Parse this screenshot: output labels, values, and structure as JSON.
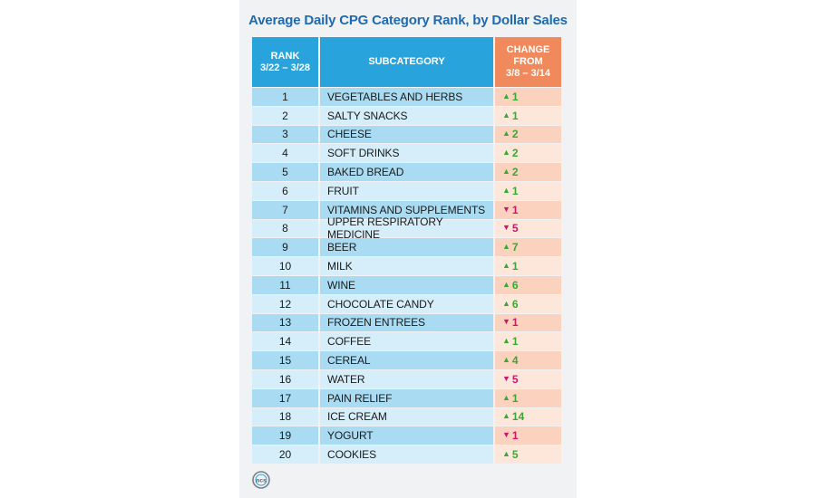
{
  "chart_data": {
    "type": "table",
    "title": "Average Daily CPG Category Rank, by Dollar Sales",
    "columns": [
      "RANK\n3/22 – 3/28",
      "SUBCATEGORY",
      "CHANGE\nFROM\n3/8 – 3/14"
    ],
    "rows": [
      {
        "rank": "1",
        "subcategory": "VEGETABLES AND HERBS",
        "direction": "up",
        "change": "1"
      },
      {
        "rank": "2",
        "subcategory": "SALTY SNACKS",
        "direction": "up",
        "change": "1"
      },
      {
        "rank": "3",
        "subcategory": "CHEESE",
        "direction": "up",
        "change": "2"
      },
      {
        "rank": "4",
        "subcategory": "SOFT DRINKS",
        "direction": "up",
        "change": "2"
      },
      {
        "rank": "5",
        "subcategory": "BAKED BREAD",
        "direction": "up",
        "change": "2"
      },
      {
        "rank": "6",
        "subcategory": "FRUIT",
        "direction": "up",
        "change": "1"
      },
      {
        "rank": "7",
        "subcategory": "VITAMINS AND SUPPLEMENTS",
        "direction": "down",
        "change": "1"
      },
      {
        "rank": "8",
        "subcategory": "UPPER RESPIRATORY MEDICINE",
        "direction": "down",
        "change": "5"
      },
      {
        "rank": "9",
        "subcategory": "BEER",
        "direction": "up",
        "change": "7"
      },
      {
        "rank": "10",
        "subcategory": "MILK",
        "direction": "up",
        "change": "1"
      },
      {
        "rank": "11",
        "subcategory": "WINE",
        "direction": "up",
        "change": "6"
      },
      {
        "rank": "12",
        "subcategory": "CHOCOLATE CANDY",
        "direction": "up",
        "change": "6"
      },
      {
        "rank": "13",
        "subcategory": "FROZEN ENTREES",
        "direction": "down",
        "change": "1"
      },
      {
        "rank": "14",
        "subcategory": "COFFEE",
        "direction": "up",
        "change": "1"
      },
      {
        "rank": "15",
        "subcategory": "CEREAL",
        "direction": "up",
        "change": "4"
      },
      {
        "rank": "16",
        "subcategory": "WATER",
        "direction": "down",
        "change": "5"
      },
      {
        "rank": "17",
        "subcategory": "PAIN RELIEF",
        "direction": "up",
        "change": "1"
      },
      {
        "rank": "18",
        "subcategory": "ICE CREAM",
        "direction": "up",
        "change": "14"
      },
      {
        "rank": "19",
        "subcategory": "YOGURT",
        "direction": "down",
        "change": "1"
      },
      {
        "rank": "20",
        "subcategory": "COOKIES",
        "direction": "up",
        "change": "5"
      }
    ]
  },
  "logo": {
    "text": "ncs",
    "icon": "ncs-logo-icon"
  },
  "colors": {
    "title": "#1f6ab0",
    "header_blue": "#29a3dc",
    "header_orange": "#f08a5d",
    "up": "#3aa835",
    "down": "#c8186e"
  },
  "arrows": {
    "up": "▲",
    "down": "▼"
  }
}
